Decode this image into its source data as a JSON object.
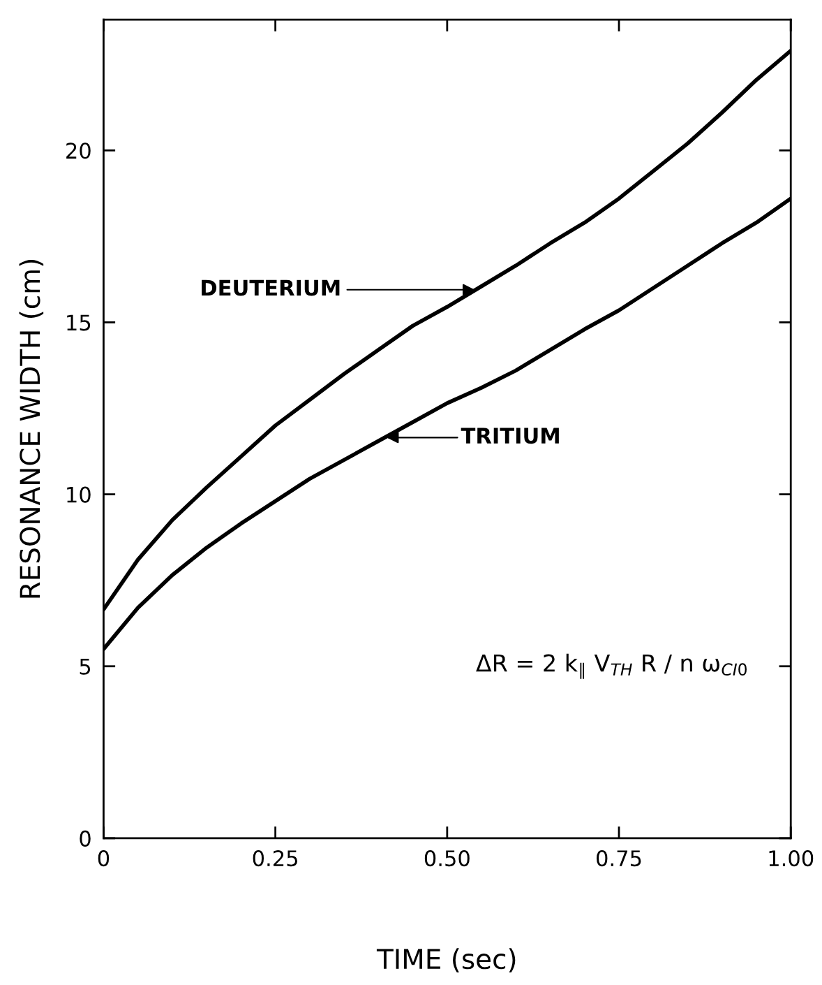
{
  "chart_data": {
    "type": "line",
    "xlabel": "TIME (sec)",
    "ylabel": "RESONANCE WIDTH (cm)",
    "x": [
      0,
      0.05,
      0.1,
      0.15,
      0.2,
      0.25,
      0.3,
      0.35,
      0.4,
      0.45,
      0.5,
      0.55,
      0.6,
      0.65,
      0.7,
      0.75,
      0.8,
      0.85,
      0.9,
      0.95,
      1.0
    ],
    "series": [
      {
        "color": "#000000",
        "values": [
          6.65,
          8.1,
          9.25,
          10.2,
          11.1,
          12.0,
          12.75,
          13.5,
          14.2,
          14.9,
          15.45,
          16.05,
          16.65,
          17.3,
          17.9,
          18.6,
          19.4,
          20.2,
          21.1,
          22.05,
          22.9
        ]
      },
      {
        "color": "#000000",
        "values": [
          5.5,
          6.7,
          7.65,
          8.45,
          9.15,
          9.8,
          10.45,
          11.0,
          11.55,
          12.1,
          12.65,
          13.1,
          13.6,
          14.2,
          14.8,
          15.35,
          16.0,
          16.65,
          17.3,
          17.9,
          18.6
        ]
      }
    ],
    "xlim": [
      0,
      1.0
    ],
    "ylim": [
      0,
      23.8
    ],
    "xticks": [
      0,
      {
        "value": 0.25,
        "label": "0.25"
      },
      {
        "value": 0.5,
        "label": "0.50"
      },
      {
        "value": 0.75,
        "label": "0.75"
      },
      {
        "value": 1.0,
        "label": "1.00"
      }
    ],
    "yticks": [
      0,
      5,
      10,
      15,
      20
    ],
    "grid": false,
    "legend": false,
    "marker": "none",
    "line_style": "solid",
    "annotations": [
      {
        "text": "DEUTERIUM",
        "x": 0.54,
        "y": 15.95
      },
      "TRITIUM",
      "ΔR = 2 k$_{∥}$ V$_{TH}$ R / n ω$_{CI0}$"
    ]
  }
}
